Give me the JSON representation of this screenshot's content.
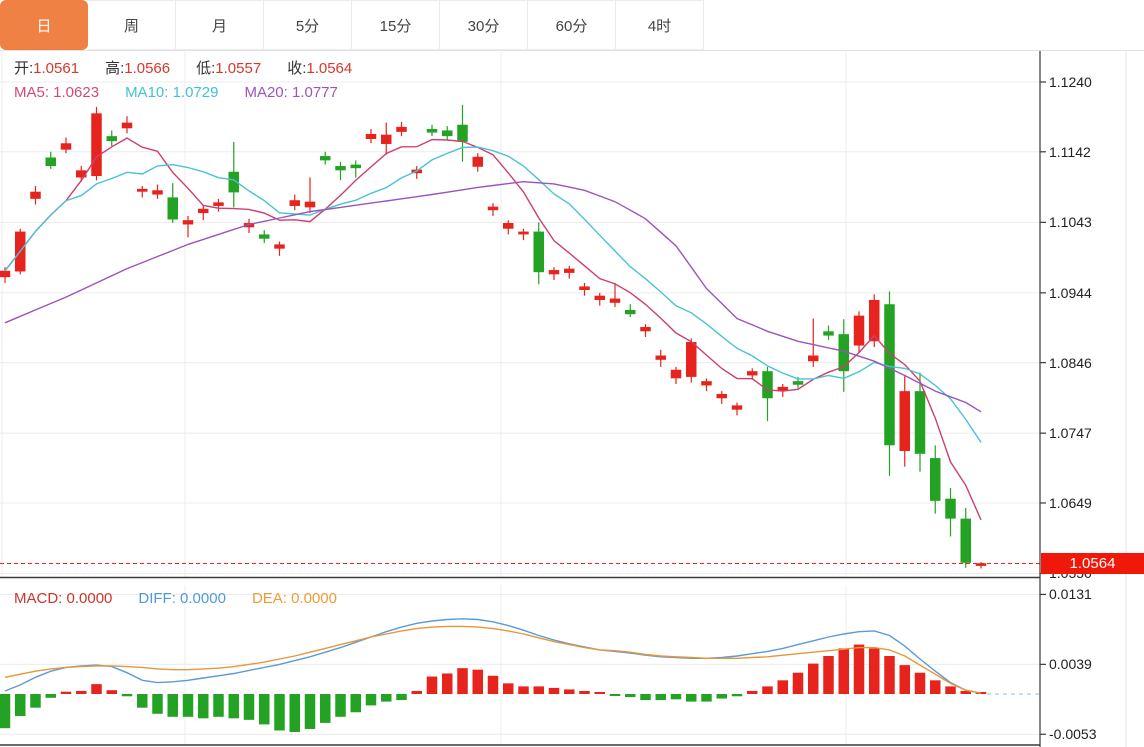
{
  "tabs": {
    "items": [
      "日",
      "周",
      "月",
      "5分",
      "15分",
      "30分",
      "60分",
      "4时"
    ],
    "active": "日"
  },
  "ohlc_legend": {
    "open_label": "开:",
    "open": "1.0561",
    "high_label": "高:",
    "high": "1.0566",
    "low_label": "低:",
    "low": "1.0557",
    "close_label": "收:",
    "close": "1.0564"
  },
  "ma_legend": [
    {
      "label": "MA5:",
      "value": "1.0623",
      "color": "#d2497c"
    },
    {
      "label": "MA10:",
      "value": "1.0729",
      "color": "#3fc2d6"
    },
    {
      "label": "MA20:",
      "value": "1.0777",
      "color": "#9b54bd"
    }
  ],
  "macd_legend": [
    {
      "label": "MACD:",
      "value": "0.0000",
      "color": "#c9362e"
    },
    {
      "label": "DIFF:",
      "value": "0.0000",
      "color": "#4f9bd9"
    },
    {
      "label": "DEA:",
      "value": "0.0000",
      "color": "#ef9c34"
    }
  ],
  "price_axis": {
    "ticks": [
      "1.1240",
      "1.1142",
      "1.1043",
      "1.0944",
      "1.0846",
      "1.0747",
      "1.0649",
      "1.0550"
    ],
    "tag_label": "1.0564",
    "tag_color": "#f01808"
  },
  "macd_axis": {
    "ticks": [
      "0.0131",
      "0.0039",
      "-0.0053"
    ]
  },
  "colors": {
    "up": "#e6231c",
    "down": "#23a223",
    "ma5": "#cc3f6e",
    "ma10": "#49c3d4",
    "ma20": "#9b54bd",
    "diff": "#5b9bd5",
    "dea": "#e8963a",
    "grid": "#ececec",
    "axis_line": "#3a3a3a",
    "dashed_price": "#ef2318",
    "dashed_zero_ext": "#a9cfe6",
    "tab_active_bg": "#ef8144",
    "legend_value_red": "#d8372c",
    "legend_label_dark": "#333333"
  },
  "chart_data": [
    {
      "type": "candlestick",
      "timeframe": "日",
      "title": "",
      "legend_values": {
        "open": 1.0561,
        "high": 1.0566,
        "low": 1.0557,
        "close": 1.0564,
        "MA5": 1.0623,
        "MA10": 1.0729,
        "MA20": 1.0777
      },
      "ylim": [
        1.052,
        1.128
      ],
      "y_axis_ticks": [
        1.124,
        1.1142,
        1.1043,
        1.0944,
        1.0846,
        1.0747,
        1.0649,
        1.055
      ],
      "last_price": 1.0564,
      "grid": true,
      "legend_position": "top-left",
      "candles_ohlc": [
        [
          1.0966,
          1.098,
          1.0958,
          1.0975
        ],
        [
          1.0974,
          1.1034,
          1.097,
          1.103
        ],
        [
          1.1076,
          1.1094,
          1.1068,
          1.1086
        ],
        [
          1.1134,
          1.1142,
          1.1118,
          1.1122
        ],
        [
          1.1145,
          1.1162,
          1.114,
          1.1154
        ],
        [
          1.1106,
          1.1122,
          1.11,
          1.1116
        ],
        [
          1.1108,
          1.1205,
          1.1102,
          1.1196
        ],
        [
          1.1164,
          1.1172,
          1.115,
          1.1157
        ],
        [
          1.1175,
          1.1192,
          1.1168,
          1.1183
        ],
        [
          1.1086,
          1.1094,
          1.1078,
          1.109
        ],
        [
          1.1082,
          1.1096,
          1.1076,
          1.1088
        ],
        [
          1.1078,
          1.1098,
          1.1042,
          1.1047
        ],
        [
          1.104,
          1.1052,
          1.1022,
          1.1046
        ],
        [
          1.1056,
          1.1068,
          1.1046,
          1.1062
        ],
        [
          1.1066,
          1.1076,
          1.1058,
          1.1071
        ],
        [
          1.1114,
          1.1156,
          1.1064,
          1.1085
        ],
        [
          1.1036,
          1.1048,
          1.1028,
          1.1042
        ],
        [
          1.1026,
          1.1032,
          1.1014,
          1.102
        ],
        [
          1.1006,
          1.1016,
          1.0996,
          1.1012
        ],
        [
          1.1066,
          1.1082,
          1.106,
          1.1074
        ],
        [
          1.1064,
          1.1106,
          1.1056,
          1.1072
        ],
        [
          1.1136,
          1.1142,
          1.1124,
          1.113
        ],
        [
          1.1122,
          1.1128,
          1.1102,
          1.1116
        ],
        [
          1.1124,
          1.113,
          1.1106,
          1.1119
        ],
        [
          1.116,
          1.1174,
          1.1154,
          1.1167
        ],
        [
          1.1153,
          1.1183,
          1.1138,
          1.1166
        ],
        [
          1.117,
          1.1184,
          1.1164,
          1.1177
        ],
        [
          1.1112,
          1.1122,
          1.1104,
          1.1117
        ],
        [
          1.1174,
          1.118,
          1.1164,
          1.1169
        ],
        [
          1.1172,
          1.1178,
          1.1158,
          1.1164
        ],
        [
          1.118,
          1.1208,
          1.1128,
          1.1156
        ],
        [
          1.1121,
          1.114,
          1.1114,
          1.1135
        ],
        [
          1.106,
          1.107,
          1.1052,
          1.1065
        ],
        [
          1.1034,
          1.1046,
          1.1026,
          1.1042
        ],
        [
          1.1026,
          1.1034,
          1.1018,
          1.103
        ],
        [
          1.103,
          1.1043,
          1.0956,
          1.0973
        ],
        [
          1.097,
          1.098,
          1.0962,
          1.0976
        ],
        [
          1.0972,
          1.0982,
          1.0964,
          1.0978
        ],
        [
          1.0948,
          1.0958,
          1.094,
          1.0953
        ],
        [
          1.0934,
          1.0944,
          1.0926,
          1.094
        ],
        [
          1.093,
          1.0958,
          1.0924,
          1.0936
        ],
        [
          1.092,
          1.0928,
          1.091,
          1.0914
        ],
        [
          1.089,
          1.09,
          1.0882,
          1.0896
        ],
        [
          1.085,
          1.0864,
          1.084,
          1.0856
        ],
        [
          1.0824,
          1.084,
          1.0816,
          1.0836
        ],
        [
          1.0826,
          1.088,
          1.0818,
          1.0875
        ],
        [
          1.0814,
          1.0824,
          1.0806,
          1.082
        ],
        [
          1.0796,
          1.0806,
          1.0788,
          1.0802
        ],
        [
          1.078,
          1.079,
          1.0772,
          1.0786
        ],
        [
          1.0828,
          1.0838,
          1.0822,
          1.0834
        ],
        [
          1.0834,
          1.084,
          1.0764,
          1.0796
        ],
        [
          1.0806,
          1.0816,
          1.0798,
          1.0812
        ],
        [
          1.082,
          1.0826,
          1.081,
          1.0815
        ],
        [
          1.0848,
          1.0908,
          1.084,
          1.0856
        ],
        [
          1.089,
          1.0898,
          1.0878,
          1.0884
        ],
        [
          1.0886,
          1.0907,
          1.0805,
          1.0834
        ],
        [
          1.087,
          1.0918,
          1.086,
          1.0912
        ],
        [
          1.0876,
          1.0942,
          1.0868,
          1.0934
        ],
        [
          1.0928,
          1.0946,
          1.0687,
          1.073
        ],
        [
          1.0722,
          1.0827,
          1.07,
          1.0806
        ],
        [
          1.0806,
          1.0832,
          1.0693,
          1.0718
        ],
        [
          1.0712,
          1.073,
          1.0634,
          1.0652
        ],
        [
          1.0655,
          1.067,
          1.0602,
          1.0627
        ],
        [
          1.0627,
          1.0642,
          1.0558,
          1.0565
        ],
        [
          1.0561,
          1.0566,
          1.0557,
          1.0564
        ]
      ],
      "ma5_window": 5,
      "ma10_window": 10,
      "ma20_anchors": [
        [
          0,
          1.0902
        ],
        [
          4,
          1.0938
        ],
        [
          8,
          1.0978
        ],
        [
          12,
          1.1012
        ],
        [
          16,
          1.104
        ],
        [
          20,
          1.1058
        ],
        [
          24,
          1.107
        ],
        [
          28,
          1.1082
        ],
        [
          31,
          1.1092
        ],
        [
          34,
          1.11
        ],
        [
          36,
          1.1097
        ],
        [
          38,
          1.1088
        ],
        [
          40,
          1.1072
        ],
        [
          42,
          1.1048
        ],
        [
          44,
          1.101
        ],
        [
          46,
          1.095
        ],
        [
          48,
          1.0908
        ],
        [
          50,
          1.089
        ],
        [
          52,
          1.0876
        ],
        [
          55,
          1.0862
        ],
        [
          57,
          1.0848
        ],
        [
          59,
          1.0828
        ],
        [
          61,
          1.0806
        ],
        [
          63,
          1.079
        ],
        [
          64,
          1.0777
        ]
      ]
    },
    {
      "type": "bar",
      "name": "MACD",
      "ylim": [
        -0.006,
        0.014
      ],
      "y_axis_ticks": [
        0.0131,
        0.0039,
        -0.0053
      ],
      "legend_values": {
        "MACD": 0.0,
        "DIFF": 0.0,
        "DEA": 0.0
      },
      "histogram": [
        -0.0045,
        -0.0029,
        -0.0018,
        -0.0005,
        0.0003,
        0.0004,
        0.0013,
        0.0005,
        -0.0003,
        -0.0018,
        -0.0026,
        -0.003,
        -0.003,
        -0.0032,
        -0.003,
        -0.0032,
        -0.0034,
        -0.004,
        -0.0048,
        -0.005,
        -0.0046,
        -0.0038,
        -0.003,
        -0.0024,
        -0.0015,
        -0.001,
        -0.0008,
        0.0004,
        0.0023,
        0.0027,
        0.0034,
        0.0032,
        0.0024,
        0.0014,
        0.001,
        0.001,
        0.0008,
        0.0006,
        0.0004,
        0.0002,
        -0.0002,
        -0.0004,
        -0.0008,
        -0.0008,
        -0.0007,
        -0.001,
        -0.001,
        -0.0006,
        -0.0003,
        0.0004,
        0.001,
        0.0018,
        0.0028,
        0.004,
        0.005,
        0.006,
        0.0065,
        0.006,
        0.005,
        0.0038,
        0.0028,
        0.0018,
        0.001,
        0.0004,
        0.0001
      ],
      "diff_line": [
        0.0004,
        0.0012,
        0.0022,
        0.003,
        0.0035,
        0.0037,
        0.0038,
        0.0036,
        0.0028,
        0.0018,
        0.0015,
        0.0016,
        0.0018,
        0.0021,
        0.0024,
        0.0027,
        0.0031,
        0.0035,
        0.0039,
        0.0044,
        0.0049,
        0.0055,
        0.0061,
        0.0068,
        0.0075,
        0.0082,
        0.0088,
        0.0093,
        0.0096,
        0.0098,
        0.0099,
        0.0098,
        0.0095,
        0.009,
        0.0084,
        0.0077,
        0.0071,
        0.0066,
        0.0062,
        0.0058,
        0.0056,
        0.0054,
        0.0051,
        0.0049,
        0.0048,
        0.0047,
        0.0047,
        0.0048,
        0.005,
        0.0053,
        0.0056,
        0.006,
        0.0065,
        0.007,
        0.0075,
        0.0079,
        0.0082,
        0.0083,
        0.0077,
        0.0063,
        0.0046,
        0.003,
        0.0015,
        0.0005,
        0.0001
      ],
      "dea_line": [
        0.0022,
        0.0026,
        0.003,
        0.0033,
        0.0035,
        0.0036,
        0.0037,
        0.0037,
        0.0036,
        0.0035,
        0.0033,
        0.0032,
        0.0032,
        0.0033,
        0.0034,
        0.0036,
        0.0039,
        0.0042,
        0.0046,
        0.005,
        0.0055,
        0.006,
        0.0065,
        0.007,
        0.0075,
        0.0079,
        0.0083,
        0.0086,
        0.0088,
        0.0089,
        0.0089,
        0.0088,
        0.0086,
        0.0083,
        0.0079,
        0.0074,
        0.0069,
        0.0065,
        0.0061,
        0.0058,
        0.0057,
        0.0055,
        0.0052,
        0.005,
        0.0049,
        0.0048,
        0.0047,
        0.0047,
        0.0047,
        0.0048,
        0.0049,
        0.0051,
        0.0053,
        0.0055,
        0.0057,
        0.0059,
        0.0061,
        0.0061,
        0.0058,
        0.005,
        0.0038,
        0.0026,
        0.0014,
        0.0005,
        0.0001
      ]
    }
  ]
}
